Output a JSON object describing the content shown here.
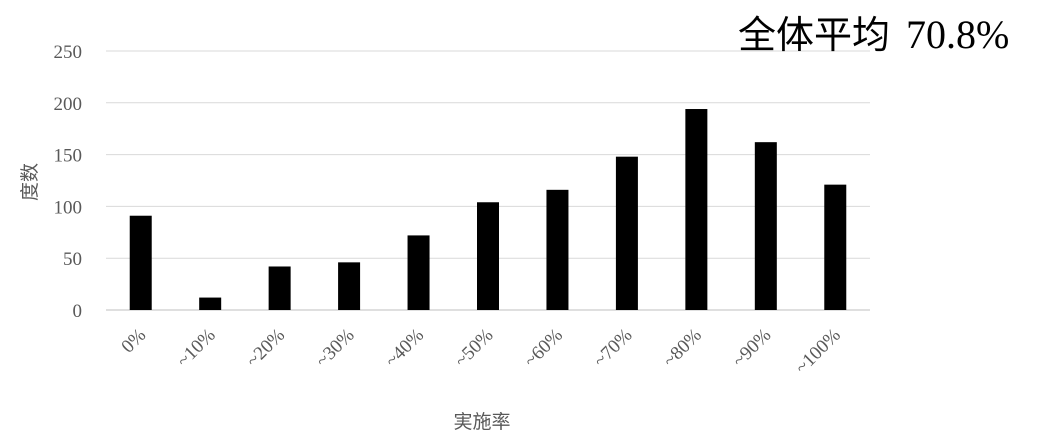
{
  "chart_data": {
    "type": "bar",
    "categories": [
      "0%",
      "~10%",
      "~20%",
      "~30%",
      "~40%",
      "~50%",
      "~60%",
      "~70%",
      "~80%",
      "~90%",
      "~100%"
    ],
    "values": [
      91,
      12,
      42,
      46,
      72,
      104,
      116,
      148,
      194,
      162,
      121
    ],
    "title": "",
    "xlabel": "実施率",
    "ylabel": "度数",
    "ylim": [
      0,
      250
    ],
    "yticks": [
      0,
      50,
      100,
      150,
      200,
      250
    ],
    "grid": true,
    "bar_color": "#000000",
    "grid_color": "#d9d9d9",
    "annotation": {
      "label": "全体平均",
      "value": "70.8%"
    }
  }
}
